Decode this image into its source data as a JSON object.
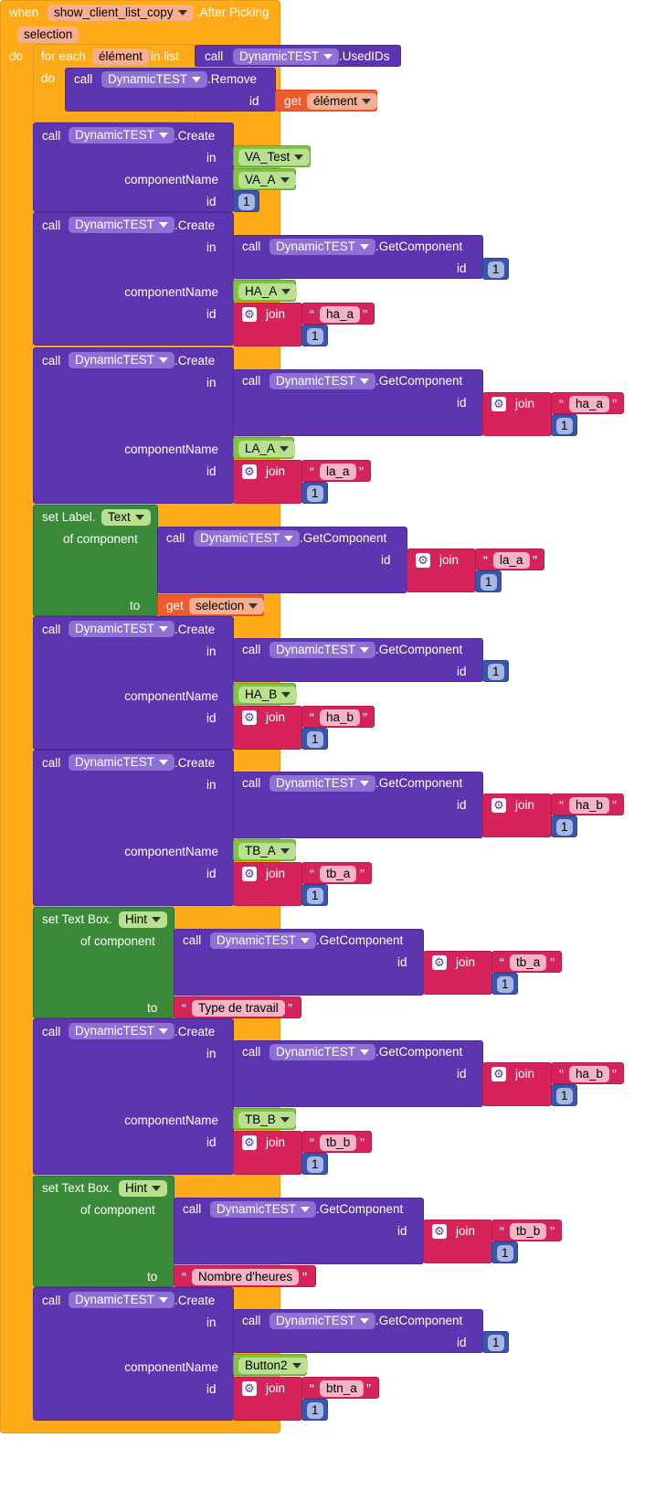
{
  "event": {
    "kw_when": "when",
    "component": "show_client_list_copy",
    "event_name": ".After Picking",
    "param": "selection",
    "kw_do": "do"
  },
  "loop": {
    "kw_for_each": "for each",
    "var": "élément",
    "kw_in_list": "in list",
    "kw_do": "do"
  },
  "kw": {
    "call": "call",
    "id": "id",
    "in": "in",
    "component_name": "componentName",
    "get": "get",
    "join": "join",
    "of_component": "of component",
    "to": "to"
  },
  "component": "DynamicTEST",
  "methods": {
    "used_ids": ".UsedIDs",
    "remove": ".Remove",
    "create": ".Create",
    "get_component": ".GetComponent"
  },
  "set_label": {
    "prefix": "set Label.",
    "prop": "Text"
  },
  "set_textbox": {
    "prefix": "set Text Box.",
    "prop": "Hint"
  },
  "text_blocks": {
    "type_travail": "Type de travail",
    "nombre_heures": "Nombre d'heures"
  },
  "creates": [
    {
      "in_component": "VA_Test",
      "name": "VA_A",
      "id": "1"
    },
    {
      "get_id": "1",
      "name": "HA_A",
      "join_text": "ha_a",
      "join_num": "1"
    },
    {
      "get_join_text": "ha_a",
      "get_join_num": "1",
      "name": "LA_A",
      "join_text": "la_a",
      "join_num": "1"
    },
    {
      "get_id": "1",
      "name": "HA_B",
      "join_text": "ha_b",
      "join_num": "1"
    },
    {
      "get_join_text": "ha_b",
      "get_join_num": "1",
      "name": "TB_A",
      "join_text": "tb_a",
      "join_num": "1"
    },
    {
      "get_join_text": "ha_b",
      "get_join_num": "1",
      "name": "TB_B",
      "join_text": "tb_b",
      "join_num": "1"
    },
    {
      "get_id": "1",
      "name": "Button2",
      "join_text": "btn_a",
      "join_num": "1"
    }
  ],
  "setters": [
    {
      "join_text": "la_a",
      "join_num": "1"
    },
    {
      "join_text": "tb_a",
      "join_num": "1"
    },
    {
      "join_text": "tb_b",
      "join_num": "1"
    }
  ],
  "colors": {
    "event": "#ffab19",
    "procedure": "#5d35b0",
    "setter": "#3b8a3a",
    "text": "#d6245b",
    "variable_get": "#f15a2a",
    "component": "#80c241",
    "number": "#3a55ad"
  }
}
